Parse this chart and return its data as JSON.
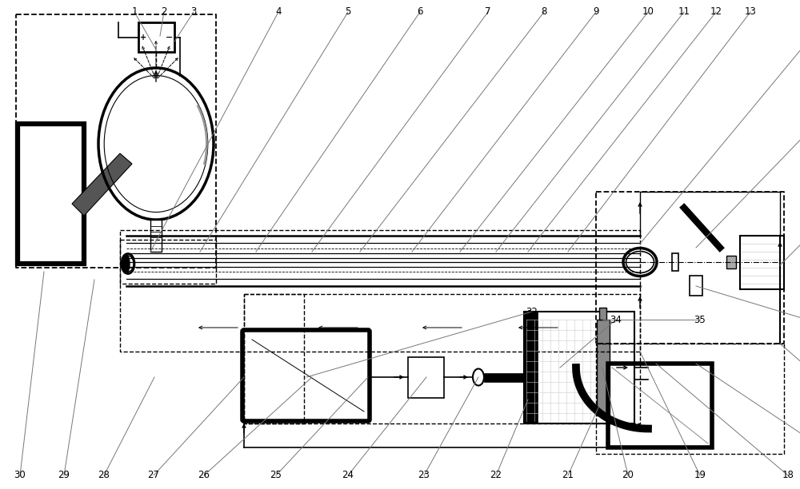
{
  "fig_width": 10.0,
  "fig_height": 6.12,
  "bg_color": "#ffffff",
  "lc": "#000000",
  "gray": "#888888",
  "lt_gray": "#bbbbbb"
}
